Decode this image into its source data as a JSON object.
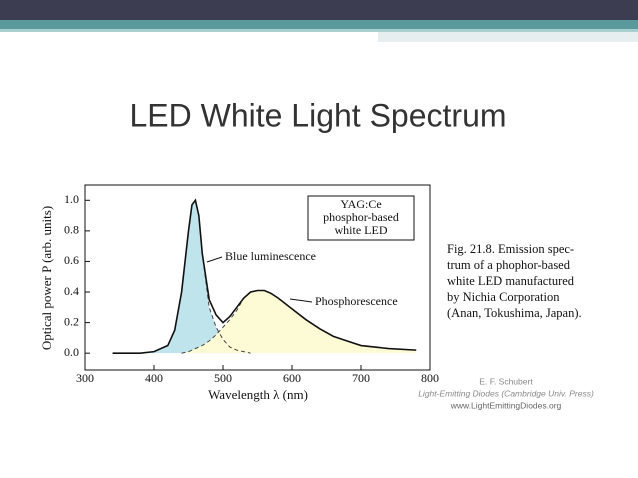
{
  "title": "LED White Light Spectrum",
  "chart_data": {
    "type": "line",
    "box_label": [
      "YAG:Ce",
      "phosphor-based",
      "white LED"
    ],
    "x_label": "Wavelength λ (nm)",
    "y_label": "Optical power P (arb. units)",
    "x": [
      340,
      380,
      400,
      420,
      430,
      440,
      450,
      455,
      460,
      465,
      470,
      480,
      490,
      500,
      510,
      520,
      530,
      540,
      550,
      560,
      570,
      580,
      600,
      620,
      640,
      660,
      680,
      700,
      740,
      780
    ],
    "values": [
      0,
      0,
      0.01,
      0.05,
      0.15,
      0.4,
      0.8,
      0.97,
      1.0,
      0.9,
      0.65,
      0.35,
      0.25,
      0.2,
      0.24,
      0.3,
      0.36,
      0.4,
      0.41,
      0.41,
      0.39,
      0.36,
      0.29,
      0.22,
      0.16,
      0.11,
      0.08,
      0.05,
      0.03,
      0.02
    ],
    "color": "#111111",
    "components": [
      {
        "name": "Blue luminescence",
        "color": "#bfe4ec",
        "values": [
          0,
          0,
          0.01,
          0.05,
          0.15,
          0.4,
          0.8,
          0.97,
          1.0,
          0.9,
          0.65,
          0.3,
          0.17,
          0.09,
          0.04,
          0.02,
          0.01,
          0,
          null,
          null,
          null,
          null,
          null,
          null,
          null,
          null,
          null,
          null,
          null,
          null
        ]
      },
      {
        "name": "Phosphorescence",
        "color": "#fdfbd6",
        "values": [
          null,
          null,
          null,
          null,
          null,
          0,
          0.01,
          0.02,
          0.03,
          0.04,
          0.05,
          0.08,
          0.12,
          0.17,
          0.22,
          0.28,
          0.36,
          0.4,
          0.41,
          0.41,
          0.39,
          0.36,
          0.29,
          0.22,
          0.16,
          0.11,
          0.08,
          0.05,
          0.03,
          0.02
        ]
      }
    ],
    "xlim": [
      300,
      800
    ],
    "ylim": [
      -0.11,
      1.1
    ],
    "xticks": [
      300,
      400,
      500,
      600,
      700,
      800
    ],
    "yticks": [
      {
        "value": 0,
        "label": "0.0"
      },
      {
        "value": 0.2,
        "label": "0.2"
      },
      {
        "value": 0.4,
        "label": "0.4"
      },
      {
        "value": 0.6,
        "label": "0.6"
      },
      {
        "value": 0.8,
        "label": "0.8"
      },
      {
        "value": 1.0,
        "label": "1.0"
      }
    ]
  },
  "caption": [
    "Fig. 21.8. Emission spec-",
    "trum of a phophor-based",
    "white LED manufactured",
    "by Nichia Corporation",
    "(Anan, Tokushima, Japan)."
  ],
  "credit": [
    "E. F. Schubert",
    "Light-Emitting Diodes (Cambridge Univ. Press)",
    "www.LightEmittingDiodes.org"
  ]
}
